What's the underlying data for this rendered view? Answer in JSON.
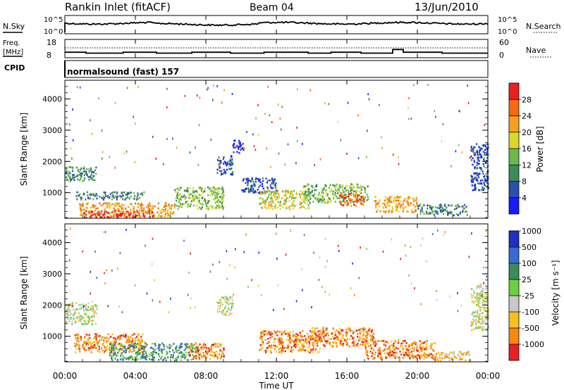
{
  "header": {
    "station": "Rankin Inlet (fitACF)",
    "beam": "Beam 04",
    "date": "13/Jun/2010"
  },
  "nsky_panel": {
    "label": "N.Sky",
    "right_label": "N.Search",
    "top_tick": "10^5",
    "bottom_tick": "10^0",
    "right_top_tick": "10^5",
    "right_bottom_tick": "10^0"
  },
  "freq_panel": {
    "label_line1": "Freq.",
    "label_line2": "[MHz]",
    "tick_high": "18",
    "tick_low": "8",
    "right_label": "Nave",
    "right_tick_high": "60",
    "right_tick_low": "0"
  },
  "cpid": {
    "label": "CPID",
    "text": "normalsound (fast) 157"
  },
  "power_panel": {
    "ylabel": "Slant Range [km]",
    "yticks": [
      "1000",
      "2000",
      "3000",
      "4000"
    ],
    "colorbar_label": "Power [dB]",
    "colorbar_ticks": [
      "4",
      "8",
      "12",
      "16",
      "20",
      "24",
      "28"
    ],
    "colors": [
      "#1a1aff",
      "#2b4fb0",
      "#3d8a5a",
      "#6bb850",
      "#d9d92a",
      "#f5a020",
      "#f56a10",
      "#e82020"
    ]
  },
  "velocity_panel": {
    "ylabel": "Slant Range [km]",
    "yticks": [
      "1000",
      "2000",
      "3000",
      "4000"
    ],
    "colorbar_label": "Velocity [m s⁻¹]",
    "colorbar_ticks": [
      "1000",
      "500",
      "100",
      "25",
      "-25",
      "-100",
      "-500",
      "-1000"
    ],
    "colors": [
      "#2030c0",
      "#3b6bd0",
      "#3d8a5a",
      "#6bd040",
      "#c8c8c8",
      "#f5c020",
      "#f58a10",
      "#e82020"
    ]
  },
  "xaxis": {
    "label": "Time UT",
    "ticks": [
      "00:00",
      "04:00",
      "08:00",
      "12:00",
      "16:00",
      "20:00",
      "00:00"
    ]
  },
  "chart_data": {
    "type": "heatmap",
    "title": "Rankin Inlet (fitACF)",
    "xlabel": "Time UT",
    "ylabel": "Slant Range [km]",
    "xlim": [
      0,
      24
    ],
    "ylim": [
      180,
      4600
    ],
    "power_colorbar_ticks": [
      4,
      8,
      12,
      16,
      20,
      24,
      28
    ],
    "velocity_colorbar_ticks": [
      1000,
      500,
      100,
      25,
      -25,
      -100,
      -500,
      -1000
    ],
    "frequency_mhz": [
      [
        0,
        11
      ],
      [
        1.2,
        11
      ],
      [
        1.2,
        10.5
      ],
      [
        3.3,
        10.5
      ],
      [
        3.3,
        11
      ],
      [
        5.2,
        11
      ],
      [
        5.2,
        10.5
      ],
      [
        7.2,
        10.5
      ],
      [
        7.2,
        11
      ],
      [
        9.4,
        11
      ],
      [
        9.4,
        10.5
      ],
      [
        11.3,
        10.5
      ],
      [
        11.3,
        11
      ],
      [
        13.8,
        11
      ],
      [
        13.8,
        10.5
      ],
      [
        15.1,
        10.5
      ],
      [
        15.1,
        11
      ],
      [
        16.8,
        11
      ],
      [
        16.8,
        10.5
      ],
      [
        18.6,
        10.5
      ],
      [
        18.6,
        12.5
      ],
      [
        19.2,
        12.5
      ],
      [
        19.2,
        11
      ],
      [
        21.4,
        11
      ],
      [
        21.4,
        10.5
      ],
      [
        24,
        10.5
      ]
    ],
    "scatter_regions_power": [
      {
        "t": [
          0.0,
          1.8
        ],
        "r": [
          1400,
          1850
        ],
        "level": 2
      },
      {
        "t": [
          0.6,
          4.5
        ],
        "r": [
          800,
          1050
        ],
        "level": 2
      },
      {
        "t": [
          0.8,
          6.2
        ],
        "r": [
          250,
          700
        ],
        "level": 5
      },
      {
        "t": [
          1.0,
          5.0
        ],
        "r": [
          220,
          450
        ],
        "level": 7
      },
      {
        "t": [
          6.2,
          9.0
        ],
        "r": [
          500,
          1200
        ],
        "level": 3
      },
      {
        "t": [
          8.6,
          9.5
        ],
        "r": [
          1600,
          2200
        ],
        "level": 1
      },
      {
        "t": [
          9.5,
          10.1
        ],
        "r": [
          2300,
          2700
        ],
        "level": 0
      },
      {
        "t": [
          10.0,
          12.0
        ],
        "r": [
          1000,
          1500
        ],
        "level": 1
      },
      {
        "t": [
          11.0,
          13.8
        ],
        "r": [
          500,
          1100
        ],
        "level": 4
      },
      {
        "t": [
          13.5,
          17.2
        ],
        "r": [
          700,
          1300
        ],
        "level": 3
      },
      {
        "t": [
          15.5,
          17.0
        ],
        "r": [
          600,
          1000
        ],
        "level": 6
      },
      {
        "t": [
          17.5,
          20.0
        ],
        "r": [
          400,
          900
        ],
        "level": 5
      },
      {
        "t": [
          20.0,
          22.8
        ],
        "r": [
          300,
          650
        ],
        "level": 2
      },
      {
        "t": [
          23.0,
          24.0
        ],
        "r": [
          1100,
          2600
        ],
        "level": 1
      }
    ],
    "scatter_regions_velocity": [
      {
        "t": [
          0.0,
          1.8
        ],
        "r": [
          1400,
          2100
        ],
        "level": 4
      },
      {
        "t": [
          0.5,
          4.5
        ],
        "r": [
          500,
          1100
        ],
        "level": 6
      },
      {
        "t": [
          2.5,
          7.5
        ],
        "r": [
          250,
          800
        ],
        "level": 2
      },
      {
        "t": [
          7.0,
          9.0
        ],
        "r": [
          300,
          800
        ],
        "level": 6
      },
      {
        "t": [
          8.6,
          9.5
        ],
        "r": [
          1700,
          2300
        ],
        "level": 4
      },
      {
        "t": [
          11.0,
          14.5
        ],
        "r": [
          500,
          1200
        ],
        "level": 6
      },
      {
        "t": [
          14.0,
          17.5
        ],
        "r": [
          700,
          1300
        ],
        "level": 6
      },
      {
        "t": [
          17.0,
          21.0
        ],
        "r": [
          300,
          900
        ],
        "level": 6
      },
      {
        "t": [
          21.0,
          23.0
        ],
        "r": [
          250,
          550
        ],
        "level": 5
      },
      {
        "t": [
          23.0,
          24.0
        ],
        "r": [
          1200,
          2700
        ],
        "level": 4
      }
    ]
  }
}
